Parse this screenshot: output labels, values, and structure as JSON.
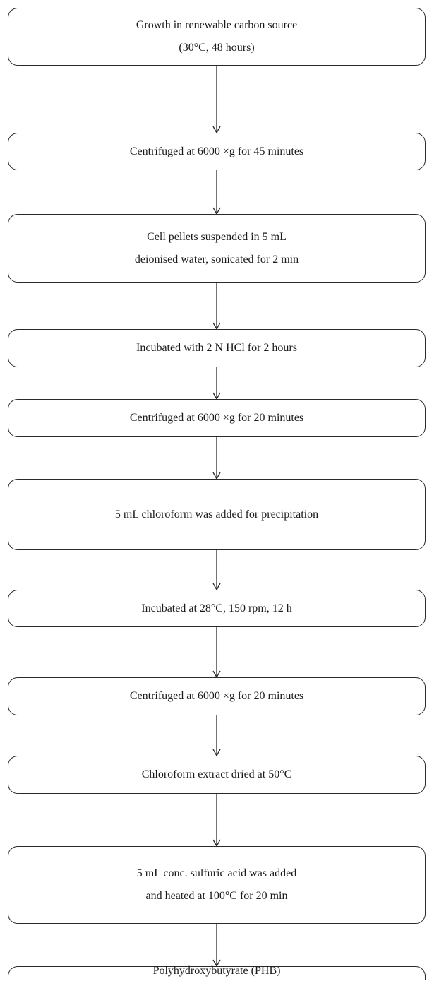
{
  "steps": [
    {
      "lines": [
        "Growth in renewable carbon source",
        "(30°C, 48 hours)"
      ]
    },
    {
      "lines": [
        "Centrifuged at 6000 ×g for 45 minutes"
      ]
    },
    {
      "lines": [
        "Cell pellets suspended in 5 mL",
        "deionised water, sonicated for 2 min"
      ]
    },
    {
      "lines": [
        "Incubated with 2 N HCl for 2 hours"
      ]
    },
    {
      "lines": [
        "Centrifuged at 6000 ×g for 20 minutes"
      ]
    },
    {
      "lines": [
        "5 mL chloroform was added for precipitation"
      ]
    },
    {
      "lines": [
        "Incubated at 28°C, 150 rpm, 12 h"
      ]
    },
    {
      "lines": [
        "Centrifuged at 6000 ×g  for 20 minutes"
      ]
    },
    {
      "lines": [
        "Chloroform extract dried at 50°C"
      ]
    },
    {
      "lines": [
        "5 mL conc. sulfuric acid was added",
        "and heated at 100°C for 20 min"
      ]
    },
    {
      "lines": [
        "Polyhydroxybutyrate (PHB)"
      ]
    }
  ]
}
